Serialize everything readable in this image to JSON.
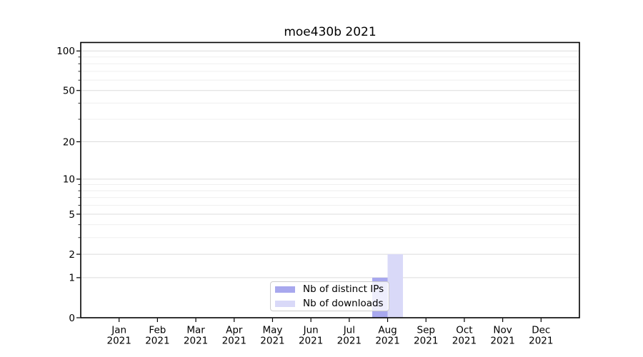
{
  "chart_data": {
    "type": "bar",
    "title": "moe430b 2021",
    "categories": [
      "Jan 2021",
      "Feb 2021",
      "Mar 2021",
      "Apr 2021",
      "May 2021",
      "Jun 2021",
      "Jul 2021",
      "Aug 2021",
      "Sep 2021",
      "Oct 2021",
      "Nov 2021",
      "Dec 2021"
    ],
    "category_line1": [
      "Jan",
      "Feb",
      "Mar",
      "Apr",
      "May",
      "Jun",
      "Jul",
      "Aug",
      "Sep",
      "Oct",
      "Nov",
      "Dec"
    ],
    "category_line2": "2021",
    "series": [
      {
        "name": "Nb of distinct IPs",
        "color": "#a8a8ee",
        "values": [
          0,
          0,
          0,
          0,
          0,
          0,
          0,
          1,
          0,
          0,
          0,
          0
        ]
      },
      {
        "name": "Nb of downloads",
        "color": "#d9d9f8",
        "values": [
          0,
          0,
          0,
          0,
          0,
          0,
          0,
          2,
          0,
          0,
          0,
          0
        ]
      }
    ],
    "xlabel": "",
    "ylabel": "",
    "y_scale": "log1p",
    "ylim": [
      0,
      116
    ],
    "y_major_ticks": [
      0,
      1,
      2,
      5,
      10,
      20,
      50,
      100
    ],
    "y_minor_ticks": [
      3,
      4,
      6,
      7,
      8,
      9,
      30,
      40,
      60,
      70,
      80,
      90
    ],
    "grid": "horizontal-major-and-minor",
    "legend_position": "lower-center",
    "colors": {
      "major_grid": "#dcdcdc",
      "minor_grid": "#eeeeee",
      "spine": "#000000",
      "text": "#000000",
      "legend_border": "#cccccc"
    }
  }
}
